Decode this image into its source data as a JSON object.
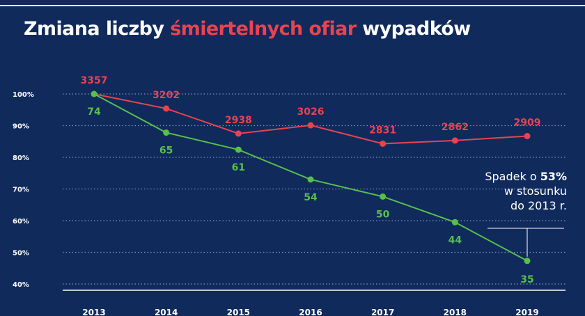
{
  "title": {
    "part1": "Zmiana liczby ",
    "accent": "śmiertelnych ofiar",
    "part2": " wypadków"
  },
  "annotation": {
    "line1_pre": "Spadek o ",
    "line1_bold": "53%",
    "line2": "w stosunku",
    "line3": "do 2013 r."
  },
  "colors": {
    "background": "#102a5c",
    "red": "#e8444f",
    "green": "#57c04a"
  },
  "chart_data": {
    "type": "line",
    "x": [
      "2013",
      "2014",
      "2015",
      "2016",
      "2017",
      "2018",
      "2019"
    ],
    "y_ticks": [
      "100%",
      "90%",
      "80%",
      "70%",
      "60%",
      "50%",
      "40%"
    ],
    "ylim": [
      40,
      100
    ],
    "grid": true,
    "series": [
      {
        "color": "#e8444f",
        "percent": [
          100,
          95.4,
          87.5,
          90.1,
          84.3,
          85.3,
          86.7
        ],
        "labels": [
          "3357",
          "3202",
          "2938",
          "3026",
          "2831",
          "2862",
          "2909"
        ]
      },
      {
        "color": "#57c04a",
        "percent": [
          100,
          87.8,
          82.4,
          73.0,
          67.6,
          59.5,
          47.3
        ],
        "labels": [
          "74",
          "65",
          "61",
          "54",
          "50",
          "44",
          "35"
        ]
      }
    ]
  }
}
